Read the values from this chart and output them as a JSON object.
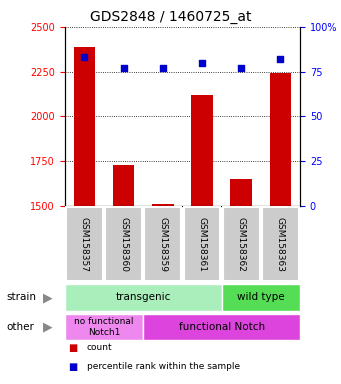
{
  "title": "GDS2848 / 1460725_at",
  "samples": [
    "GSM158357",
    "GSM158360",
    "GSM158359",
    "GSM158361",
    "GSM158362",
    "GSM158363"
  ],
  "counts": [
    2390,
    1730,
    1510,
    2120,
    1650,
    2240
  ],
  "percentiles": [
    83,
    77,
    77,
    80,
    77,
    82
  ],
  "y_min": 1500,
  "y_max": 2500,
  "y_ticks": [
    1500,
    1750,
    2000,
    2250,
    2500
  ],
  "right_y_ticks": [
    0,
    25,
    50,
    75,
    100
  ],
  "bar_color": "#cc0000",
  "percentile_color": "#0000cc",
  "bar_width": 0.55,
  "strain_transgenic_color": "#aaeebb",
  "strain_wildtype_color": "#55dd55",
  "other_nofunc_color": "#ee88ee",
  "other_func_color": "#dd44dd",
  "legend_count_color": "#cc0000",
  "legend_percentile_color": "#0000cc",
  "title_fontsize": 10,
  "tick_fontsize": 7,
  "sample_label_fontsize": 6.5,
  "annotation_fontsize": 7.5,
  "background_color": "#ffffff",
  "sample_box_color": "#cccccc",
  "arrow_color": "#888888"
}
